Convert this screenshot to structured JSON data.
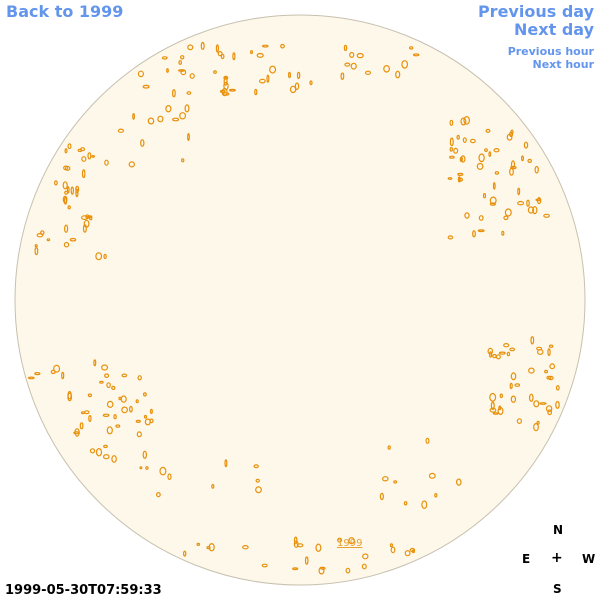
{
  "nav": {
    "back_label": "Back to 1999",
    "prev_day_label": "Previous day",
    "next_day_label": "Next day",
    "prev_hour_label": "Previous hour",
    "next_hour_label": "Next hour"
  },
  "year_link": "1999",
  "compass": {
    "north": "N",
    "east": "E",
    "center": "+",
    "west": "W",
    "south": "S"
  },
  "timestamp": "1999-05-30T07:59:33",
  "colors": {
    "disk_fill": "#fdf8ea",
    "disk_border": "#c8c0b0",
    "contour": "#e8900a",
    "link": "#6495ed"
  }
}
